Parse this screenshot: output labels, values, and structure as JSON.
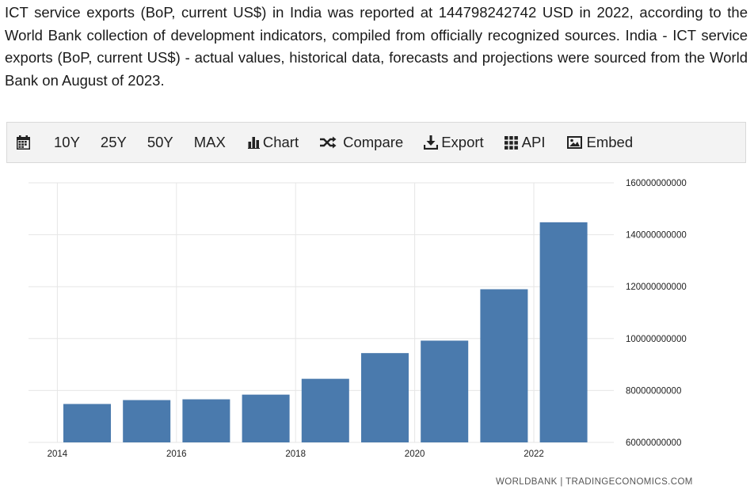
{
  "intro": {
    "text": "ICT service exports (BoP, current US$) in India was reported at 144798242742 USD in 2022, according to the World Bank collection of development indicators, compiled from officially recognized sources. India - ICT service exports (BoP, current US$) - actual values, historical data, forecasts and projections were sourced from the World Bank on August of 2023."
  },
  "toolbar": {
    "calendar_icon": "calendar-icon",
    "range_10y": "10Y",
    "range_25y": "25Y",
    "range_50y": "50Y",
    "range_max": "MAX",
    "chart_label": "Chart",
    "compare_label": "Compare",
    "export_label": "Export",
    "api_label": "API",
    "embed_label": "Embed"
  },
  "chart_data": {
    "type": "bar",
    "categories": [
      "2014",
      "2015",
      "2016",
      "2017",
      "2018",
      "2019",
      "2020",
      "2021",
      "2022"
    ],
    "values": [
      74800000000,
      76300000000,
      76600000000,
      78400000000,
      84500000000,
      94400000000,
      99200000000,
      119000000000,
      144798242742
    ],
    "x_tick_labels": [
      "2014",
      "2016",
      "2018",
      "2020",
      "2022"
    ],
    "y_tick_labels": [
      "60000000000",
      "80000000000",
      "100000000000",
      "120000000000",
      "140000000000",
      "160000000000"
    ],
    "ylim": [
      60000000000,
      160000000000
    ],
    "y_axis_side": "right",
    "grid": true,
    "bar_color": "#4a7aad",
    "grid_color": "#e6e6e6"
  },
  "credit": "WORLDBANK | TRADINGECONOMICS.COM"
}
